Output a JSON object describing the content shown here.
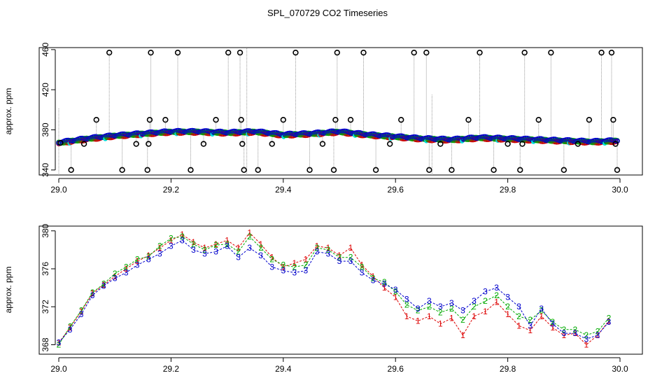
{
  "figure": {
    "title": "SPL_070729  CO2 Timeseries"
  },
  "chart_data": [
    {
      "type": "scatter",
      "panel": "top",
      "title": "",
      "xlabel": "",
      "ylabel": "approx. ppm",
      "xlim": [
        29.0,
        30.0
      ],
      "ylim": [
        335,
        462
      ],
      "x_ticks": [
        "29.0",
        "29.2",
        "29.4",
        "29.6",
        "29.8",
        "30.0"
      ],
      "y_ticks": [
        "340",
        "380",
        "420",
        "460"
      ],
      "grid": false,
      "legend": "none",
      "colors": {
        "series_red": "#cc0000",
        "series_green": "#00aa00",
        "series_blue": "#0000cc",
        "cyan_points": "#00dddd",
        "outliers": "#000000",
        "spikes": "#999999"
      },
      "baseline": [
        [
          29.0,
          367
        ],
        [
          29.05,
          371
        ],
        [
          29.1,
          374
        ],
        [
          29.15,
          376
        ],
        [
          29.2,
          378
        ],
        [
          29.25,
          378
        ],
        [
          29.3,
          377
        ],
        [
          29.35,
          378
        ],
        [
          29.4,
          375
        ],
        [
          29.45,
          376
        ],
        [
          29.5,
          378
        ],
        [
          29.55,
          375
        ],
        [
          29.6,
          373
        ],
        [
          29.65,
          371
        ],
        [
          29.7,
          370
        ],
        [
          29.75,
          372
        ],
        [
          29.8,
          371
        ],
        [
          29.85,
          370
        ],
        [
          29.9,
          369
        ],
        [
          29.95,
          368
        ],
        [
          29.995,
          369
        ]
      ],
      "outliers": [
        {
          "x": 29.003,
          "y": 367
        },
        {
          "x": 29.022,
          "y": 340
        },
        {
          "x": 29.045,
          "y": 366
        },
        {
          "x": 29.067,
          "y": 390
        },
        {
          "x": 29.09,
          "y": 457
        },
        {
          "x": 29.113,
          "y": 340
        },
        {
          "x": 29.138,
          "y": 366
        },
        {
          "x": 29.158,
          "y": 340
        },
        {
          "x": 29.16,
          "y": 366
        },
        {
          "x": 29.162,
          "y": 390
        },
        {
          "x": 29.164,
          "y": 457
        },
        {
          "x": 29.19,
          "y": 390
        },
        {
          "x": 29.212,
          "y": 457
        },
        {
          "x": 29.235,
          "y": 340
        },
        {
          "x": 29.258,
          "y": 366
        },
        {
          "x": 29.28,
          "y": 390
        },
        {
          "x": 29.302,
          "y": 457
        },
        {
          "x": 29.323,
          "y": 457
        },
        {
          "x": 29.325,
          "y": 390
        },
        {
          "x": 29.327,
          "y": 366
        },
        {
          "x": 29.33,
          "y": 340
        },
        {
          "x": 29.355,
          "y": 340
        },
        {
          "x": 29.38,
          "y": 366
        },
        {
          "x": 29.4,
          "y": 390
        },
        {
          "x": 29.422,
          "y": 457
        },
        {
          "x": 29.447,
          "y": 340
        },
        {
          "x": 29.47,
          "y": 366
        },
        {
          "x": 29.49,
          "y": 340
        },
        {
          "x": 29.493,
          "y": 390
        },
        {
          "x": 29.496,
          "y": 457
        },
        {
          "x": 29.52,
          "y": 390
        },
        {
          "x": 29.543,
          "y": 457
        },
        {
          "x": 29.565,
          "y": 340
        },
        {
          "x": 29.59,
          "y": 366
        },
        {
          "x": 29.61,
          "y": 390
        },
        {
          "x": 29.633,
          "y": 457
        },
        {
          "x": 29.655,
          "y": 457
        },
        {
          "x": 29.66,
          "y": 340
        },
        {
          "x": 29.68,
          "y": 366
        },
        {
          "x": 29.7,
          "y": 340
        },
        {
          "x": 29.73,
          "y": 390
        },
        {
          "x": 29.75,
          "y": 457
        },
        {
          "x": 29.775,
          "y": 340
        },
        {
          "x": 29.8,
          "y": 366
        },
        {
          "x": 29.822,
          "y": 340
        },
        {
          "x": 29.826,
          "y": 366
        },
        {
          "x": 29.83,
          "y": 457
        },
        {
          "x": 29.855,
          "y": 390
        },
        {
          "x": 29.877,
          "y": 457
        },
        {
          "x": 29.9,
          "y": 340
        },
        {
          "x": 29.925,
          "y": 366
        },
        {
          "x": 29.945,
          "y": 390
        },
        {
          "x": 29.967,
          "y": 457
        },
        {
          "x": 29.985,
          "y": 457
        },
        {
          "x": 29.988,
          "y": 390
        },
        {
          "x": 29.992,
          "y": 366
        },
        {
          "x": 29.995,
          "y": 340
        }
      ],
      "spikes": [
        {
          "x": 29.0,
          "y0": 335,
          "y1": 402
        },
        {
          "x": 29.335,
          "y0": 335,
          "y1": 462
        },
        {
          "x": 29.665,
          "y0": 335,
          "y1": 415
        }
      ]
    },
    {
      "type": "line",
      "panel": "bottom",
      "title": "",
      "xlabel": "",
      "ylabel": "approx. ppm",
      "xlim": [
        29.0,
        30.0
      ],
      "ylim": [
        367,
        380.5
      ],
      "x_ticks": [
        "29.0",
        "29.2",
        "29.4",
        "29.6",
        "29.8",
        "30.0"
      ],
      "y_ticks": [
        "368",
        "372",
        "376",
        "380"
      ],
      "grid": false,
      "legend": "none",
      "marker_glyphs": [
        "1",
        "2",
        "3"
      ],
      "colors": [
        "#dd0000",
        "#00aa00",
        "#0000cc"
      ],
      "series": [
        {
          "marker": "1",
          "x": [
            29.0,
            29.02,
            29.04,
            29.06,
            29.08,
            29.1,
            29.12,
            29.14,
            29.16,
            29.18,
            29.2,
            29.22,
            29.24,
            29.26,
            29.28,
            29.3,
            29.32,
            29.34,
            29.36,
            29.38,
            29.4,
            29.42,
            29.44,
            29.46,
            29.48,
            29.5,
            29.52,
            29.54,
            29.56,
            29.58,
            29.6,
            29.62,
            29.64,
            29.66,
            29.68,
            29.7,
            29.72,
            29.74,
            29.76,
            29.78,
            29.8,
            29.82,
            29.84,
            29.86,
            29.88,
            29.9,
            29.92,
            29.94,
            29.96,
            29.98
          ],
          "y": [
            368.2,
            369.8,
            371.5,
            373.4,
            374.3,
            375.2,
            376.0,
            376.8,
            377.4,
            378.2,
            379.0,
            379.6,
            378.8,
            378.2,
            378.6,
            379.0,
            378.2,
            379.8,
            378.6,
            377.2,
            376.2,
            376.6,
            377.0,
            378.4,
            378.2,
            377.4,
            378.2,
            376.4,
            375.2,
            374.0,
            373.0,
            371.0,
            370.5,
            371.0,
            370.2,
            370.8,
            369.0,
            371.0,
            371.5,
            372.5,
            371.2,
            370.0,
            369.5,
            371.0,
            369.8,
            369.0,
            369.2,
            368.0,
            369.0,
            370.5
          ]
        },
        {
          "marker": "2",
          "x": [
            29.0,
            29.02,
            29.04,
            29.06,
            29.08,
            29.1,
            29.12,
            29.14,
            29.16,
            29.18,
            29.2,
            29.22,
            29.24,
            29.26,
            29.28,
            29.3,
            29.32,
            29.34,
            29.36,
            29.38,
            29.4,
            29.42,
            29.44,
            29.46,
            29.48,
            29.5,
            29.52,
            29.54,
            29.56,
            29.58,
            29.6,
            29.62,
            29.64,
            29.66,
            29.68,
            29.7,
            29.72,
            29.74,
            29.76,
            29.78,
            29.8,
            29.82,
            29.84,
            29.86,
            29.88,
            29.9,
            29.92,
            29.94,
            29.96,
            29.98
          ],
          "y": [
            368.0,
            369.9,
            371.6,
            373.5,
            374.4,
            375.5,
            376.2,
            377.0,
            377.3,
            378.4,
            379.2,
            379.4,
            378.6,
            378.0,
            378.5,
            378.6,
            377.8,
            379.4,
            378.2,
            377.0,
            376.4,
            376.2,
            376.4,
            378.2,
            378.0,
            377.2,
            377.2,
            376.2,
            375.0,
            374.6,
            373.6,
            372.2,
            371.6,
            372.0,
            371.4,
            371.8,
            370.6,
            372.0,
            372.6,
            373.2,
            372.0,
            371.0,
            370.6,
            371.6,
            370.4,
            369.6,
            369.6,
            369.0,
            369.4,
            370.8
          ]
        },
        {
          "marker": "3",
          "x": [
            29.0,
            29.02,
            29.04,
            29.06,
            29.08,
            29.1,
            29.12,
            29.14,
            29.16,
            29.18,
            29.2,
            29.22,
            29.24,
            29.26,
            29.28,
            29.3,
            29.32,
            29.34,
            29.36,
            29.38,
            29.4,
            29.42,
            29.44,
            29.46,
            29.48,
            29.5,
            29.52,
            29.54,
            29.56,
            29.58,
            29.6,
            29.62,
            29.64,
            29.66,
            29.68,
            29.7,
            29.72,
            29.74,
            29.76,
            29.78,
            29.8,
            29.82,
            29.84,
            29.86,
            29.88,
            29.9,
            29.92,
            29.94,
            29.96,
            29.98
          ],
          "y": [
            368.2,
            369.6,
            371.2,
            373.2,
            374.2,
            375.0,
            375.6,
            376.4,
            377.0,
            377.6,
            378.4,
            379.0,
            378.0,
            377.6,
            377.8,
            378.4,
            377.2,
            378.2,
            377.4,
            376.2,
            375.8,
            375.6,
            375.8,
            377.8,
            377.6,
            376.8,
            376.8,
            375.6,
            374.8,
            374.4,
            373.8,
            372.8,
            371.8,
            372.6,
            372.0,
            372.4,
            371.6,
            372.6,
            373.6,
            374.0,
            373.0,
            372.0,
            370.0,
            371.8,
            370.2,
            369.2,
            369.2,
            368.6,
            369.0,
            370.4
          ]
        }
      ]
    }
  ]
}
